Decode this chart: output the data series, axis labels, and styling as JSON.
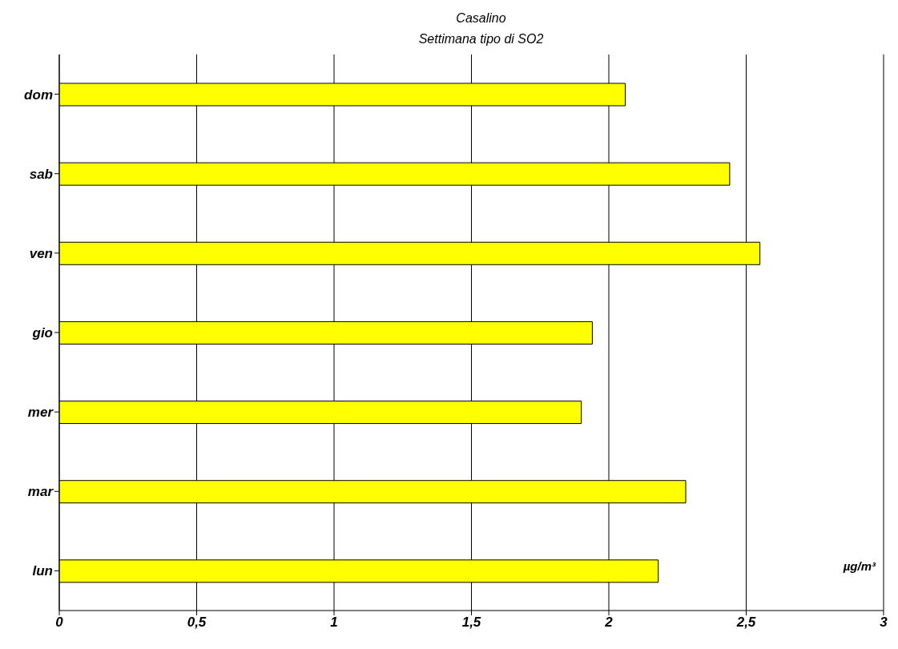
{
  "chart_data": {
    "type": "bar",
    "orientation": "horizontal",
    "title": "Casalino",
    "subtitle": "Settimana tipo di SO2",
    "categories": [
      "dom",
      "sab",
      "ven",
      "gio",
      "mer",
      "mar",
      "lun"
    ],
    "values": [
      2.06,
      2.44,
      2.55,
      1.94,
      1.9,
      2.28,
      2.18
    ],
    "color": "#ffff00",
    "xlim": [
      0,
      3
    ],
    "xticks": [
      0,
      {
        "value": 0.5,
        "label": "0,5"
      },
      1,
      {
        "value": 1.5,
        "label": "1,5"
      },
      2,
      {
        "value": 2.5,
        "label": "2,5"
      },
      3
    ],
    "grid": "x",
    "annotations": [
      "µg/m³"
    ]
  }
}
